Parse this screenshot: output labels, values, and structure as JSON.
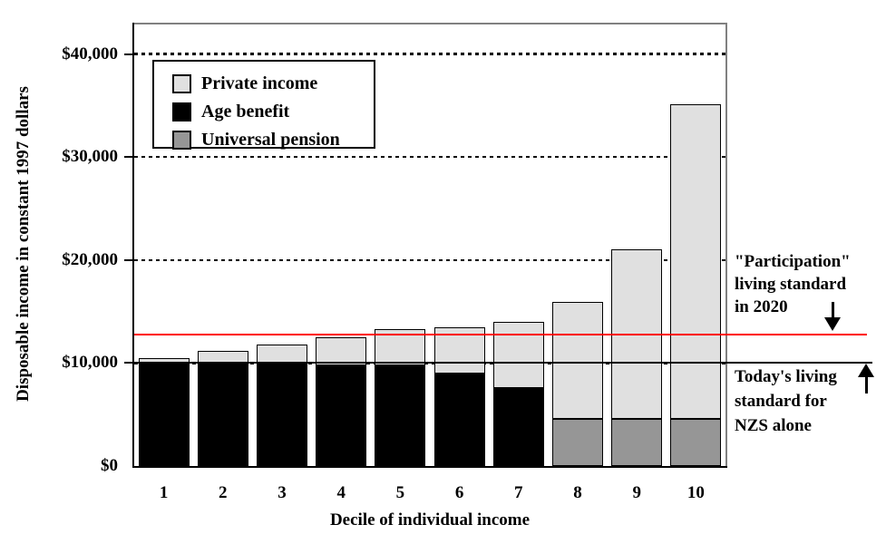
{
  "chart_data": {
    "type": "bar",
    "stacked": true,
    "title": "",
    "xlabel": "Decile of individual income",
    "ylabel": "Disposable income in constant 1997 dollars",
    "categories": [
      "1",
      "2",
      "3",
      "4",
      "5",
      "6",
      "7",
      "8",
      "9",
      "10"
    ],
    "series": [
      {
        "name": "Age benefit",
        "color": "#000000",
        "values": [
          9900,
          9900,
          9900,
          9800,
          9800,
          9000,
          7600,
          0,
          0,
          0
        ]
      },
      {
        "name": "Universal pension",
        "color": "#969696",
        "values": [
          0,
          0,
          0,
          0,
          0,
          0,
          0,
          4600,
          4600,
          4600
        ]
      },
      {
        "name": "Private income",
        "color": "#e0e0e0",
        "values": [
          600,
          1250,
          1900,
          2700,
          3500,
          4450,
          6400,
          11300,
          16400,
          30500
        ]
      }
    ],
    "totals": [
      10500,
      11150,
      11800,
      12500,
      13300,
      13450,
      14000,
      15900,
      21000,
      35100
    ],
    "legend": [
      {
        "label": "Private income",
        "color": "#e0e0e0"
      },
      {
        "label": "Age benefit",
        "color": "#000000"
      },
      {
        "label": "Universal pension",
        "color": "#969696"
      }
    ],
    "legend_position": "top-left-inside",
    "y_axis": {
      "ticks": [
        {
          "label": "$0",
          "value": 0
        },
        {
          "label": "$10,000",
          "value": 10000
        },
        {
          "label": "$20,000",
          "value": 20000
        },
        {
          "label": "$30,000",
          "value": 30000
        },
        {
          "label": "$40,000",
          "value": 40000
        }
      ],
      "ylim": [
        0,
        43000
      ],
      "gridlines": [
        10000,
        20000,
        30000,
        40000
      ],
      "gridline_style": "dashed"
    },
    "reference_lines": [
      {
        "value": 12800,
        "color": "#ff0000"
      },
      {
        "value": 10000,
        "color": "#000000"
      }
    ],
    "annotations": [
      {
        "lines": [
          "\"Participation\"",
          "living standard",
          "in 2020"
        ],
        "icon": "down-arrow-icon",
        "points_to_value": 12800
      },
      {
        "lines": [
          "Today's living",
          "standard for",
          "NZS alone"
        ],
        "icon": "up-arrow-icon",
        "points_to_value": 10000
      }
    ]
  }
}
